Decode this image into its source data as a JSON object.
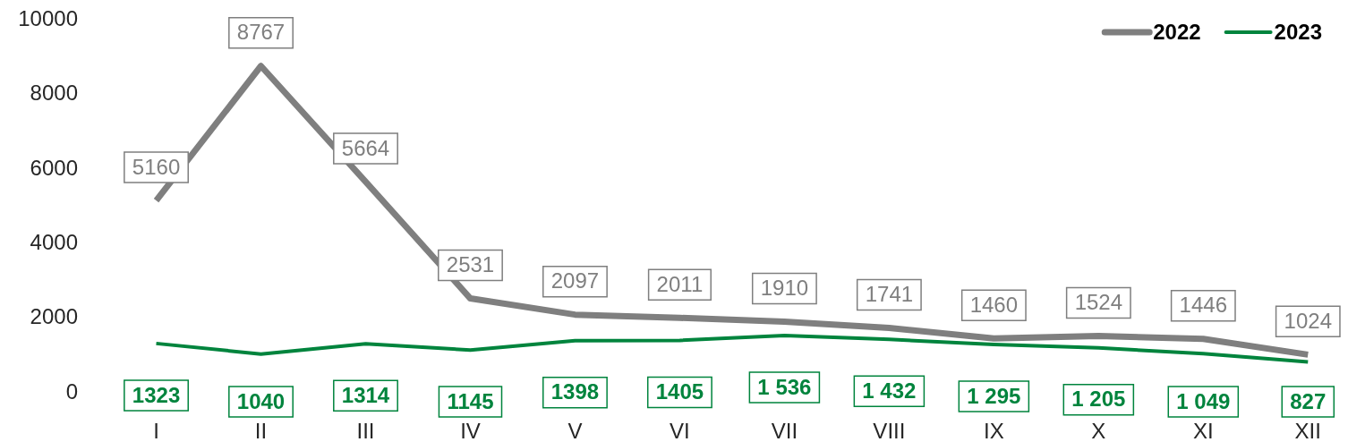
{
  "chart_data": {
    "type": "line",
    "categories": [
      "I",
      "II",
      "III",
      "IV",
      "V",
      "VI",
      "VII",
      "VIII",
      "IX",
      "X",
      "XI",
      "XII"
    ],
    "series": [
      {
        "name": "2022",
        "color": "#7f7f7f",
        "values": [
          5160,
          8767,
          5664,
          2531,
          2097,
          2011,
          1910,
          1741,
          1460,
          1524,
          1446,
          1024
        ],
        "value_labels": [
          "5160",
          "8767",
          "5664",
          "2531",
          "2097",
          "2011",
          "1910",
          "1741",
          "1460",
          "1524",
          "1446",
          "1024"
        ]
      },
      {
        "name": "2023",
        "color": "#00843d",
        "values": [
          1323,
          1040,
          1314,
          1145,
          1398,
          1405,
          1536,
          1432,
          1295,
          1205,
          1049,
          827
        ],
        "value_labels": [
          "1323",
          "1040",
          "1314",
          "1145",
          "1398",
          "1405",
          "1 536",
          "1 432",
          "1 295",
          "1 205",
          "1 049",
          "827"
        ]
      }
    ],
    "ylim": [
      0,
      10000
    ],
    "yticks": [
      0,
      2000,
      4000,
      6000,
      8000,
      10000
    ],
    "grid": false,
    "legend": "top right",
    "marker": "none",
    "line_style": "solid"
  }
}
